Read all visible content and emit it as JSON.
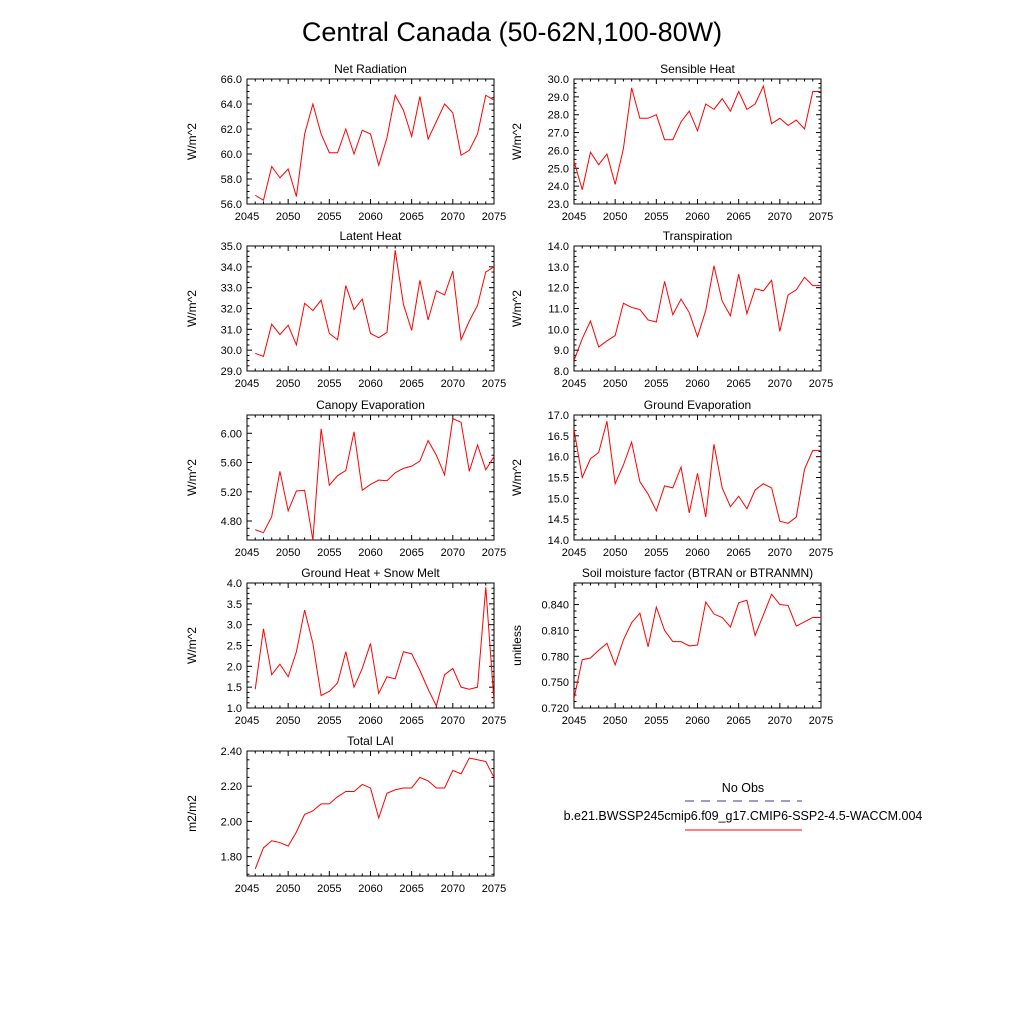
{
  "figure_title": "Central Canada (50-62N,100-80W)",
  "legend": {
    "obs_label": "No Obs",
    "obs_color": "#3b3b8f",
    "model_label": "b.e21.BWSSP245cmip6.f09_g17.CMIP6-SSP2-4.5-WACCM.004",
    "model_color": "#ff0000"
  },
  "chart_data": [
    {
      "type": "line",
      "title": "Net Radiation",
      "ylabel": "W/m^2",
      "xlim": [
        2045,
        2075
      ],
      "ylim": [
        56.0,
        66.0
      ],
      "xticks": [
        2045,
        2050,
        2055,
        2060,
        2065,
        2070,
        2075
      ],
      "yticks": [
        "56.0",
        "58.0",
        "60.0",
        "62.0",
        "64.0",
        "66.0"
      ],
      "x": [
        2046,
        2047,
        2048,
        2049,
        2050,
        2051,
        2052,
        2053,
        2054,
        2055,
        2056,
        2057,
        2058,
        2059,
        2060,
        2061,
        2062,
        2063,
        2064,
        2065,
        2066,
        2067,
        2068,
        2069,
        2070,
        2071,
        2072,
        2073,
        2074,
        2075
      ],
      "series": [
        {
          "values": [
            56.7,
            56.3,
            59.0,
            58.1,
            58.8,
            56.6,
            61.6,
            64.0,
            61.6,
            60.1,
            60.1,
            62.0,
            60.0,
            61.9,
            61.6,
            59.1,
            61.3,
            64.7,
            63.5,
            61.4,
            64.6,
            61.2,
            62.6,
            64.0,
            63.3,
            59.9,
            60.3,
            61.6,
            64.7,
            64.3
          ],
          "color": "#ff0000"
        }
      ]
    },
    {
      "type": "line",
      "title": "Sensible Heat",
      "ylabel": "W/m^2",
      "xlim": [
        2045,
        2075
      ],
      "ylim": [
        23.0,
        30.0
      ],
      "xticks": [
        2045,
        2050,
        2055,
        2060,
        2065,
        2070,
        2075
      ],
      "yticks": [
        "23.0",
        "24.0",
        "25.0",
        "26.0",
        "27.0",
        "28.0",
        "29.0",
        "30.0"
      ],
      "x": [
        2045,
        2046,
        2047,
        2048,
        2049,
        2050,
        2051,
        2052,
        2053,
        2054,
        2055,
        2056,
        2057,
        2058,
        2059,
        2060,
        2061,
        2062,
        2063,
        2064,
        2065,
        2066,
        2067,
        2068,
        2069,
        2070,
        2071,
        2072,
        2073,
        2074,
        2075
      ],
      "series": [
        {
          "values": [
            25.4,
            23.8,
            25.9,
            25.2,
            25.8,
            24.1,
            26.1,
            29.5,
            27.8,
            27.8,
            28.0,
            26.6,
            26.6,
            27.6,
            28.2,
            27.1,
            28.6,
            28.3,
            28.9,
            28.2,
            29.3,
            28.3,
            28.6,
            29.6,
            27.5,
            27.8,
            27.4,
            27.7,
            27.2,
            29.3,
            29.3
          ],
          "color": "#ff0000"
        }
      ]
    },
    {
      "type": "line",
      "title": "Latent Heat",
      "ylabel": "W/m^2",
      "xlim": [
        2045,
        2075
      ],
      "ylim": [
        29.0,
        35.0
      ],
      "xticks": [
        2045,
        2050,
        2055,
        2060,
        2065,
        2070,
        2075
      ],
      "yticks": [
        "29.0",
        "30.0",
        "31.0",
        "32.0",
        "33.0",
        "34.0",
        "35.0"
      ],
      "x": [
        2046,
        2047,
        2048,
        2049,
        2050,
        2051,
        2052,
        2053,
        2054,
        2055,
        2056,
        2057,
        2058,
        2059,
        2060,
        2061,
        2062,
        2063,
        2064,
        2065,
        2066,
        2067,
        2068,
        2069,
        2070,
        2071,
        2072,
        2073,
        2074,
        2075
      ],
      "series": [
        {
          "values": [
            29.85,
            29.7,
            31.25,
            30.75,
            31.2,
            30.25,
            32.25,
            31.9,
            32.4,
            30.8,
            30.5,
            33.1,
            31.95,
            32.45,
            30.8,
            30.6,
            30.85,
            34.8,
            32.2,
            30.95,
            33.35,
            31.45,
            32.85,
            32.65,
            33.8,
            30.5,
            31.4,
            32.15,
            33.75,
            34.0
          ],
          "color": "#ff0000"
        }
      ]
    },
    {
      "type": "line",
      "title": "Transpiration",
      "ylabel": "W/m^2",
      "xlim": [
        2045,
        2075
      ],
      "ylim": [
        8.0,
        14.0
      ],
      "xticks": [
        2045,
        2050,
        2055,
        2060,
        2065,
        2070,
        2075
      ],
      "yticks": [
        "8.0",
        "9.0",
        "10.0",
        "11.0",
        "12.0",
        "13.0",
        "14.0"
      ],
      "x": [
        2045,
        2046,
        2047,
        2048,
        2049,
        2050,
        2051,
        2052,
        2053,
        2054,
        2055,
        2056,
        2057,
        2058,
        2059,
        2060,
        2061,
        2062,
        2063,
        2064,
        2065,
        2066,
        2067,
        2068,
        2069,
        2070,
        2071,
        2072,
        2073,
        2074,
        2075
      ],
      "series": [
        {
          "values": [
            8.5,
            9.55,
            10.4,
            9.15,
            9.45,
            9.7,
            11.25,
            11.05,
            10.95,
            10.45,
            10.35,
            12.3,
            10.7,
            11.45,
            10.8,
            9.65,
            10.9,
            13.05,
            11.35,
            10.65,
            12.65,
            10.75,
            11.95,
            11.85,
            12.35,
            9.9,
            11.65,
            11.9,
            12.5,
            12.1,
            12.1
          ],
          "color": "#ff0000"
        }
      ]
    },
    {
      "type": "line",
      "title": "Canopy Evaporation",
      "ylabel": "W/m^2",
      "xlim": [
        2045,
        2075
      ],
      "ylim": [
        4.54,
        6.25
      ],
      "xticks": [
        2045,
        2050,
        2055,
        2060,
        2065,
        2070,
        2075
      ],
      "yticks": [
        "4.80",
        "5.20",
        "5.60",
        "6.00"
      ],
      "x": [
        2046,
        2047,
        2048,
        2049,
        2050,
        2051,
        2052,
        2053,
        2054,
        2055,
        2056,
        2057,
        2058,
        2059,
        2060,
        2061,
        2062,
        2063,
        2064,
        2065,
        2066,
        2067,
        2068,
        2069,
        2070,
        2071,
        2072,
        2073,
        2074,
        2075
      ],
      "series": [
        {
          "values": [
            4.68,
            4.64,
            4.86,
            5.48,
            4.94,
            5.21,
            5.22,
            4.54,
            6.06,
            5.29,
            5.42,
            5.49,
            6.02,
            5.22,
            5.3,
            5.36,
            5.35,
            5.46,
            5.52,
            5.55,
            5.62,
            5.9,
            5.7,
            5.43,
            6.2,
            6.15,
            5.48,
            5.84,
            5.5,
            5.68
          ],
          "color": "#ff0000"
        }
      ]
    },
    {
      "type": "line",
      "title": "Ground Evaporation",
      "ylabel": "W/m^2",
      "xlim": [
        2045,
        2075
      ],
      "ylim": [
        14.0,
        17.0
      ],
      "xticks": [
        2045,
        2050,
        2055,
        2060,
        2065,
        2070,
        2075
      ],
      "yticks": [
        "14.0",
        "14.5",
        "15.0",
        "15.5",
        "16.0",
        "16.5",
        "17.0"
      ],
      "x": [
        2045,
        2046,
        2047,
        2048,
        2049,
        2050,
        2051,
        2052,
        2053,
        2054,
        2055,
        2056,
        2057,
        2058,
        2059,
        2060,
        2061,
        2062,
        2063,
        2064,
        2065,
        2066,
        2067,
        2068,
        2069,
        2070,
        2071,
        2072,
        2073,
        2074,
        2075
      ],
      "series": [
        {
          "values": [
            16.65,
            15.5,
            15.95,
            16.1,
            16.85,
            15.35,
            15.8,
            16.35,
            15.4,
            15.1,
            14.7,
            15.3,
            15.25,
            15.75,
            14.65,
            15.6,
            14.55,
            16.3,
            15.25,
            14.8,
            15.05,
            14.75,
            15.2,
            15.35,
            15.25,
            14.45,
            14.4,
            14.55,
            15.7,
            16.15,
            16.15
          ],
          "color": "#ff0000"
        }
      ]
    },
    {
      "type": "line",
      "title": "Ground Heat + Snow Melt",
      "ylabel": "W/m^2",
      "xlim": [
        2045,
        2075
      ],
      "ylim": [
        1.0,
        4.0
      ],
      "xticks": [
        2045,
        2050,
        2055,
        2060,
        2065,
        2070,
        2075
      ],
      "yticks": [
        "1.0",
        "1.5",
        "2.0",
        "2.5",
        "3.0",
        "3.5",
        "4.0"
      ],
      "x": [
        2046,
        2047,
        2048,
        2049,
        2050,
        2051,
        2052,
        2053,
        2054,
        2055,
        2056,
        2057,
        2058,
        2059,
        2060,
        2061,
        2062,
        2063,
        2064,
        2065,
        2066,
        2067,
        2068,
        2069,
        2070,
        2071,
        2072,
        2073,
        2074,
        2075
      ],
      "series": [
        {
          "values": [
            1.45,
            2.9,
            1.8,
            2.05,
            1.75,
            2.35,
            3.35,
            2.55,
            1.3,
            1.4,
            1.6,
            2.35,
            1.5,
            1.95,
            2.55,
            1.35,
            1.75,
            1.7,
            2.35,
            2.3,
            1.9,
            1.45,
            1.05,
            1.8,
            1.95,
            1.5,
            1.45,
            1.5,
            3.9,
            1.15
          ],
          "color": "#ff0000"
        }
      ]
    },
    {
      "type": "line",
      "title": "Soil moisture factor (BTRAN or BTRANMN)",
      "ylabel": "unitless",
      "xlim": [
        2045,
        2075
      ],
      "ylim": [
        0.72,
        0.865
      ],
      "xticks": [
        2045,
        2050,
        2055,
        2060,
        2065,
        2070,
        2075
      ],
      "yticks": [
        "0.720",
        "0.750",
        "0.780",
        "0.810",
        "0.840"
      ],
      "x": [
        2045,
        2046,
        2047,
        2048,
        2049,
        2050,
        2051,
        2052,
        2053,
        2054,
        2055,
        2056,
        2057,
        2058,
        2059,
        2060,
        2061,
        2062,
        2063,
        2064,
        2065,
        2066,
        2067,
        2068,
        2069,
        2070,
        2071,
        2072,
        2073,
        2074,
        2075
      ],
      "series": [
        {
          "values": [
            0.731,
            0.776,
            0.778,
            0.787,
            0.795,
            0.77,
            0.799,
            0.819,
            0.83,
            0.791,
            0.837,
            0.81,
            0.797,
            0.797,
            0.792,
            0.793,
            0.843,
            0.829,
            0.825,
            0.814,
            0.842,
            0.845,
            0.804,
            0.828,
            0.852,
            0.84,
            0.839,
            0.815,
            0.82,
            0.825,
            0.825
          ],
          "color": "#ff0000"
        }
      ]
    },
    {
      "type": "line",
      "title": "Total LAI",
      "ylabel": "m2/m2",
      "xlim": [
        2045,
        2075
      ],
      "ylim": [
        1.69,
        2.4
      ],
      "xticks": [
        2045,
        2050,
        2055,
        2060,
        2065,
        2070,
        2075
      ],
      "yticks": [
        "1.80",
        "2.00",
        "2.20",
        "2.40"
      ],
      "x": [
        2046,
        2047,
        2048,
        2049,
        2050,
        2051,
        2052,
        2053,
        2054,
        2055,
        2056,
        2057,
        2058,
        2059,
        2060,
        2061,
        2062,
        2063,
        2064,
        2065,
        2066,
        2067,
        2068,
        2069,
        2070,
        2071,
        2072,
        2073,
        2074,
        2075
      ],
      "series": [
        {
          "values": [
            1.73,
            1.85,
            1.89,
            1.88,
            1.86,
            1.94,
            2.04,
            2.06,
            2.1,
            2.1,
            2.14,
            2.17,
            2.17,
            2.21,
            2.19,
            2.02,
            2.16,
            2.18,
            2.19,
            2.19,
            2.25,
            2.23,
            2.19,
            2.19,
            2.29,
            2.27,
            2.36,
            2.35,
            2.34,
            2.25
          ],
          "color": "#ff0000"
        }
      ]
    }
  ]
}
